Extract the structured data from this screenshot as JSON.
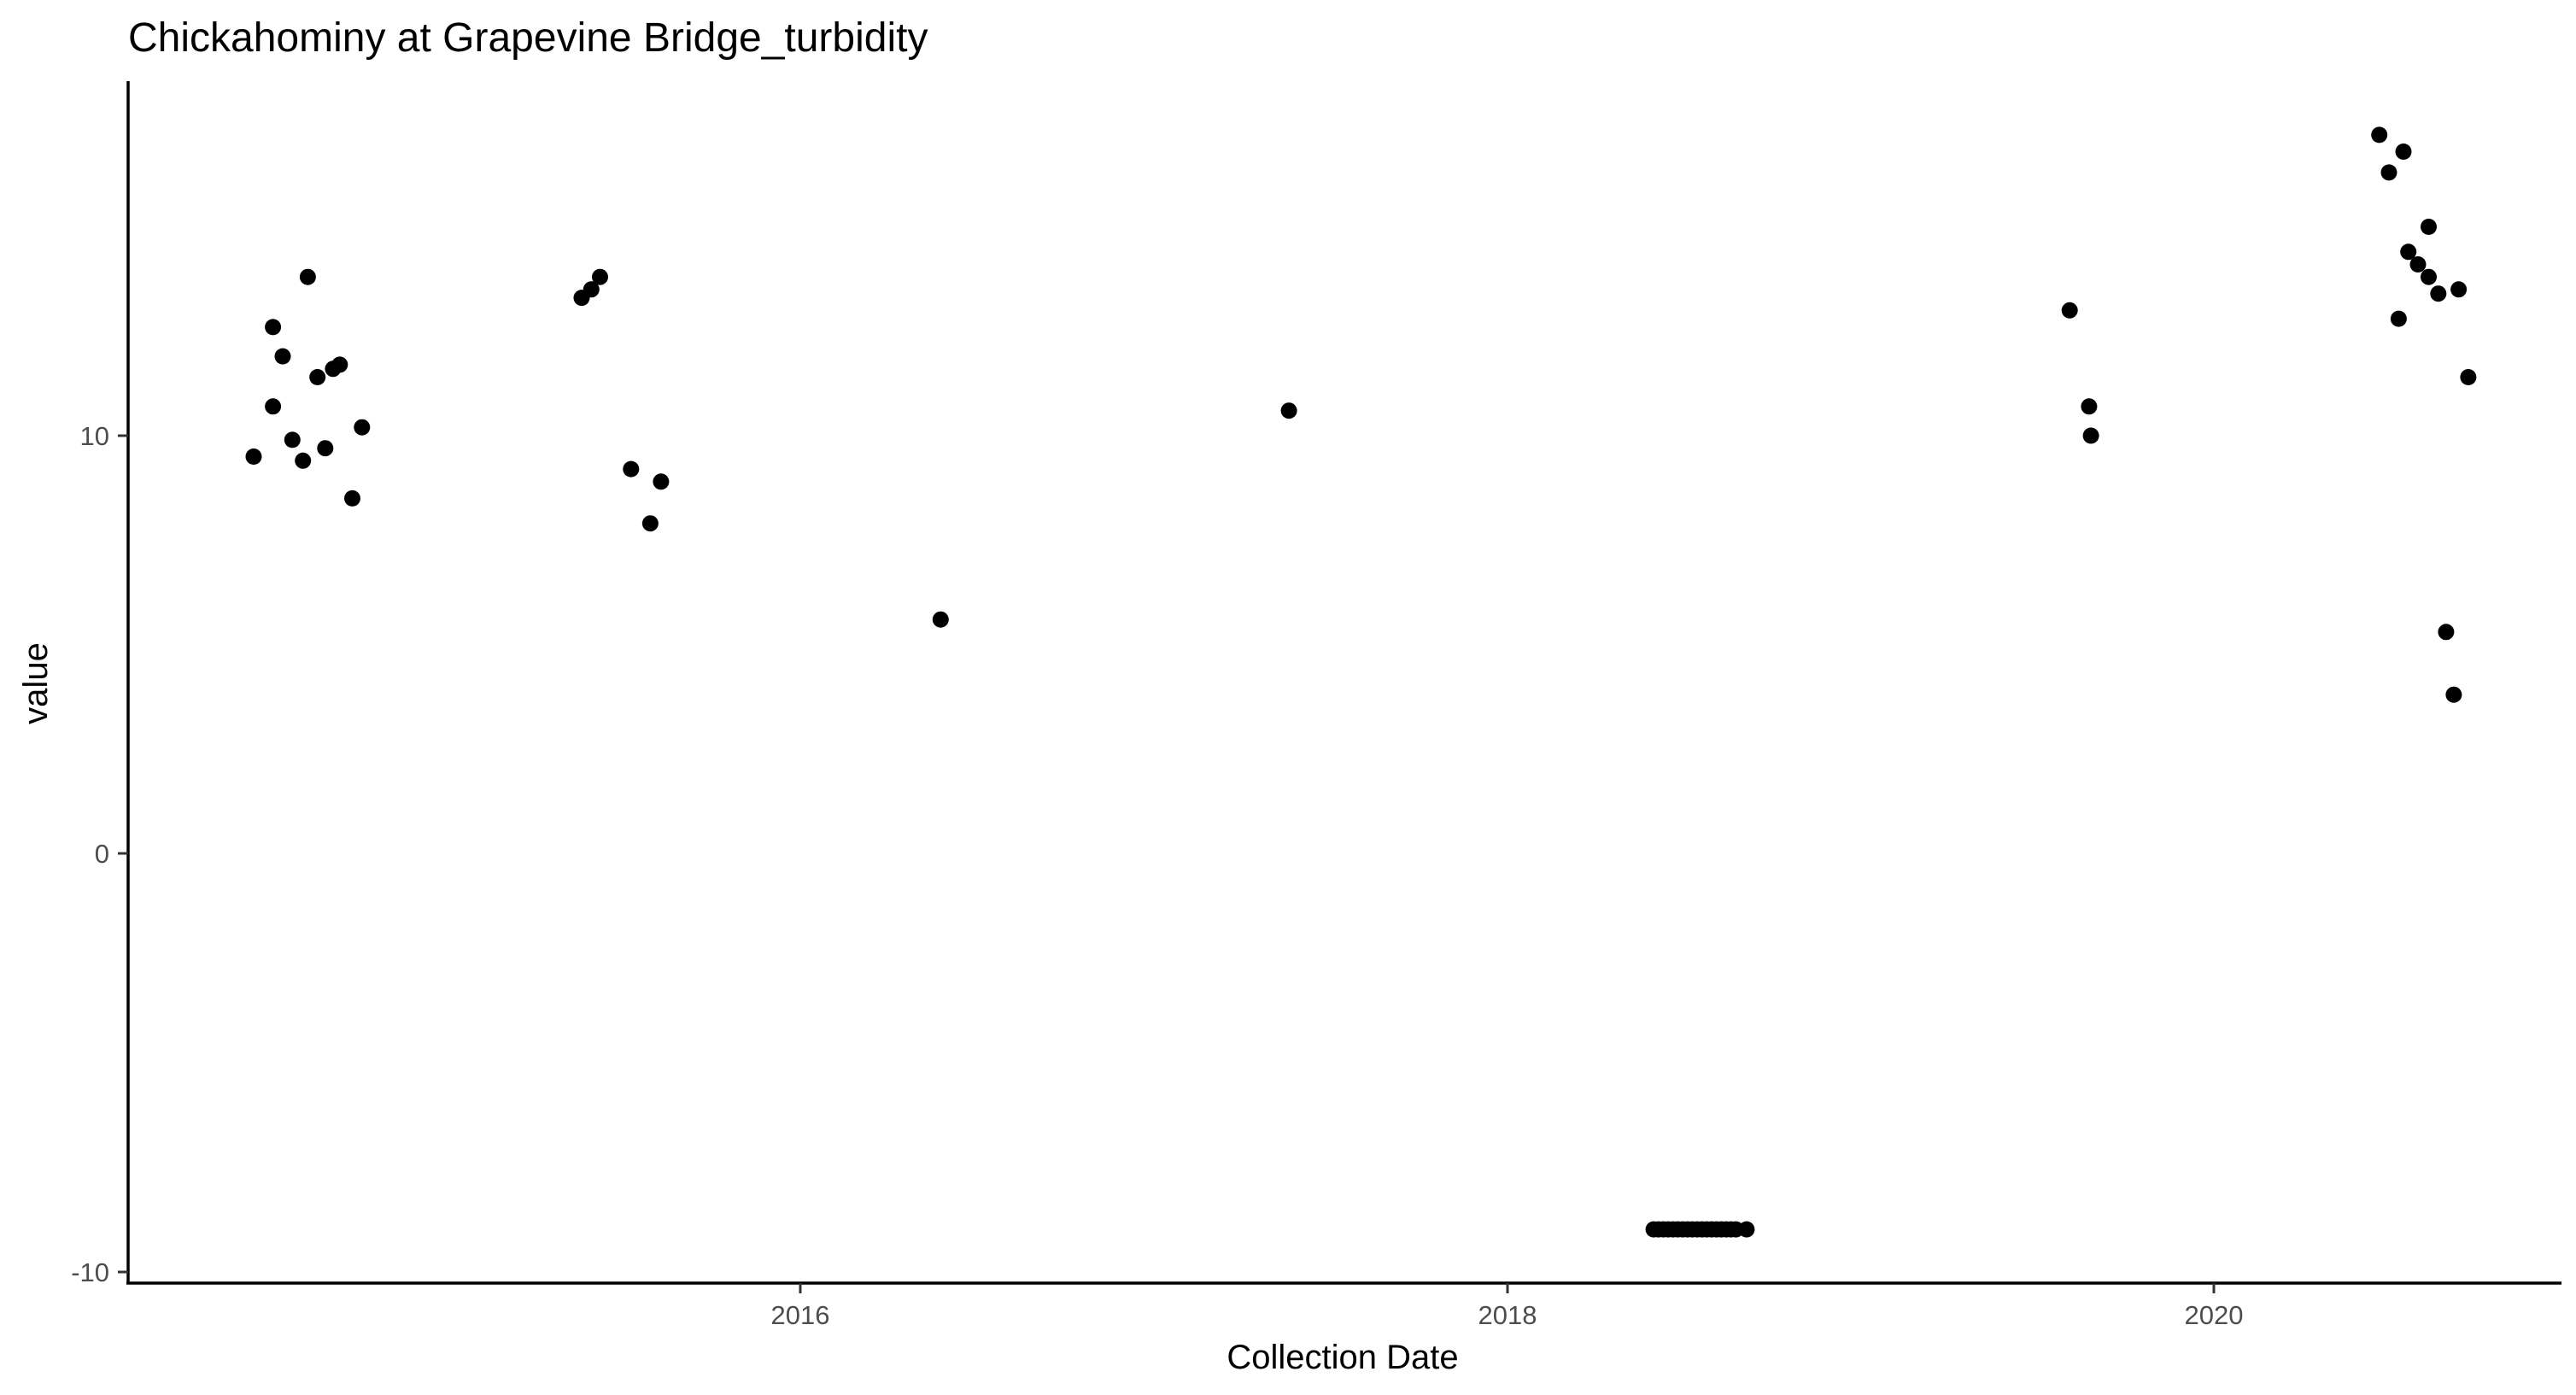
{
  "chart_data": {
    "type": "scatter",
    "title": "Chickahominy at Grapevine Bridge_turbidity",
    "xlabel": "Collection Date",
    "ylabel": "value",
    "x_ticks": [
      "2016",
      "2018",
      "2020"
    ],
    "y_ticks": [
      "-10",
      "0",
      "10"
    ],
    "xlim": [
      "2014-05-01",
      "2020-12-15"
    ],
    "ylim": [
      -10.3,
      18.6
    ],
    "grid": false,
    "legend": "none",
    "point_color": "#000000",
    "points": [
      {
        "x": "2014-06-15",
        "y": 9.5
      },
      {
        "x": "2014-07-05",
        "y": 12.6
      },
      {
        "x": "2014-07-05",
        "y": 10.7
      },
      {
        "x": "2014-07-15",
        "y": 11.9
      },
      {
        "x": "2014-07-25",
        "y": 9.9
      },
      {
        "x": "2014-08-05",
        "y": 9.4
      },
      {
        "x": "2014-08-10",
        "y": 13.8
      },
      {
        "x": "2014-08-20",
        "y": 11.4
      },
      {
        "x": "2014-08-28",
        "y": 9.7
      },
      {
        "x": "2014-09-05",
        "y": 11.6
      },
      {
        "x": "2014-09-12",
        "y": 11.7
      },
      {
        "x": "2014-09-25",
        "y": 8.5
      },
      {
        "x": "2014-10-05",
        "y": 10.2
      },
      {
        "x": "2015-05-20",
        "y": 13.3
      },
      {
        "x": "2015-05-30",
        "y": 13.5
      },
      {
        "x": "2015-06-08",
        "y": 13.8
      },
      {
        "x": "2015-07-10",
        "y": 9.2
      },
      {
        "x": "2015-07-30",
        "y": 7.9
      },
      {
        "x": "2015-08-10",
        "y": 8.9
      },
      {
        "x": "2016-05-25",
        "y": 5.6
      },
      {
        "x": "2017-05-20",
        "y": 10.6
      },
      {
        "x": "2018-06-01",
        "y": -9.0
      },
      {
        "x": "2018-06-06",
        "y": -9.0
      },
      {
        "x": "2018-06-11",
        "y": -9.0
      },
      {
        "x": "2018-06-16",
        "y": -9.0
      },
      {
        "x": "2018-06-21",
        "y": -9.0
      },
      {
        "x": "2018-06-26",
        "y": -9.0
      },
      {
        "x": "2018-07-01",
        "y": -9.0
      },
      {
        "x": "2018-07-06",
        "y": -9.0
      },
      {
        "x": "2018-07-11",
        "y": -9.0
      },
      {
        "x": "2018-07-16",
        "y": -9.0
      },
      {
        "x": "2018-07-21",
        "y": -9.0
      },
      {
        "x": "2018-07-26",
        "y": -9.0
      },
      {
        "x": "2018-07-31",
        "y": -9.0
      },
      {
        "x": "2018-08-05",
        "y": -9.0
      },
      {
        "x": "2018-08-10",
        "y": -9.0
      },
      {
        "x": "2018-08-15",
        "y": -9.0
      },
      {
        "x": "2018-08-20",
        "y": -9.0
      },
      {
        "x": "2018-08-25",
        "y": -9.0
      },
      {
        "x": "2018-09-05",
        "y": -9.0
      },
      {
        "x": "2019-08-05",
        "y": 13.0
      },
      {
        "x": "2019-08-25",
        "y": 10.7
      },
      {
        "x": "2019-08-27",
        "y": 10.0
      },
      {
        "x": "2020-06-20",
        "y": 17.2
      },
      {
        "x": "2020-06-30",
        "y": 16.3
      },
      {
        "x": "2020-07-10",
        "y": 12.8
      },
      {
        "x": "2020-07-15",
        "y": 16.8
      },
      {
        "x": "2020-07-20",
        "y": 14.4
      },
      {
        "x": "2020-07-30",
        "y": 14.1
      },
      {
        "x": "2020-08-10",
        "y": 15.0
      },
      {
        "x": "2020-08-10",
        "y": 13.8
      },
      {
        "x": "2020-08-20",
        "y": 13.4
      },
      {
        "x": "2020-08-28",
        "y": 5.3
      },
      {
        "x": "2020-09-05",
        "y": 3.8
      },
      {
        "x": "2020-09-10",
        "y": 13.5
      },
      {
        "x": "2020-09-20",
        "y": 11.4
      }
    ]
  }
}
